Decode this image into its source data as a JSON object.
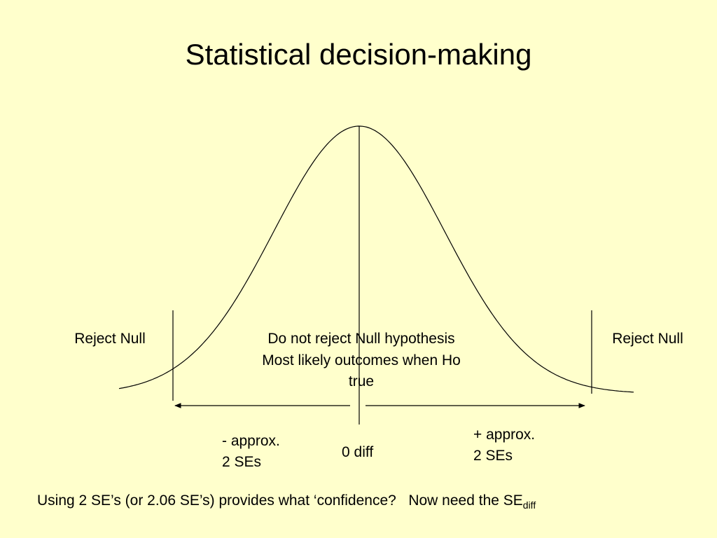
{
  "title": "Statistical decision-making",
  "regions": {
    "left": "Reject Null",
    "center": [
      "Do not reject Null hypothesis",
      "Most likely outcomes when Ho",
      "true"
    ],
    "right": "Reject Null"
  },
  "axis_labels": {
    "minus": [
      "- approx.",
      "2 SEs"
    ],
    "zero": "0 diff",
    "plus": [
      "+ approx.",
      "2 SEs"
    ]
  },
  "footer": {
    "text": "Using 2 SE’s (or 2.06 SE’s) provides what ‘confidence?   Now need the SE",
    "subscript": "diff"
  }
}
